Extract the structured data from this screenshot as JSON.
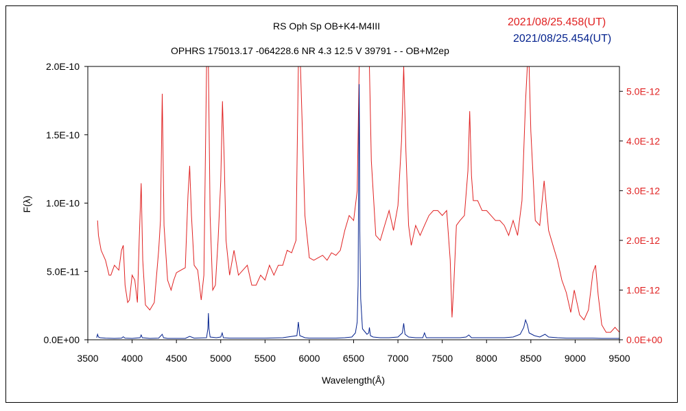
{
  "title_line1": "RS Oph    Sp OB+K4-M4III",
  "title_line2": "OPHRS 175013.17 -064228.6 NR 4.3 12.5 V 39791 - - OB+M2ep",
  "chart_data": {
    "type": "line",
    "xlabel": "Wavelength(Å)",
    "ylabel": "F(λ)",
    "xlim": [
      3500,
      9500
    ],
    "ylim_left": [
      0,
      2e-10
    ],
    "ylim_right": [
      0,
      5.5e-12
    ],
    "x_ticks": [
      "3500",
      "4000",
      "4500",
      "5000",
      "5500",
      "6000",
      "6500",
      "7000",
      "7500",
      "8000",
      "8500",
      "9000",
      "9500"
    ],
    "y_ticks_left": [
      "0.0E+00",
      "5.0E-11",
      "1.0E-10",
      "1.5E-10",
      "2.0E-10"
    ],
    "y_ticks_right": [
      "0.0E+00",
      "1.0E-12",
      "2.0E-12",
      "3.0E-12",
      "4.0E-12",
      "5.0E-12"
    ],
    "grid": false,
    "series": [
      {
        "name": "2021/08/25.458(UT)",
        "color": "#e02020",
        "axis": "right",
        "x": [
          3610,
          3620,
          3650,
          3700,
          3740,
          3760,
          3800,
          3850,
          3880,
          3900,
          3920,
          3950,
          3970,
          4000,
          4030,
          4060,
          4080,
          4102,
          4120,
          4150,
          4200,
          4250,
          4300,
          4320,
          4340,
          4360,
          4400,
          4440,
          4470,
          4500,
          4550,
          4600,
          4630,
          4650,
          4670,
          4700,
          4740,
          4780,
          4810,
          4840,
          4861,
          4880,
          4910,
          4940,
          4970,
          5000,
          5020,
          5040,
          5060,
          5100,
          5150,
          5200,
          5250,
          5300,
          5350,
          5400,
          5450,
          5500,
          5550,
          5600,
          5650,
          5700,
          5750,
          5800,
          5850,
          5876,
          5900,
          5950,
          6000,
          6050,
          6100,
          6150,
          6200,
          6250,
          6300,
          6350,
          6400,
          6450,
          6500,
          6540,
          6563,
          6590,
          6620,
          6650,
          6678,
          6700,
          6750,
          6800,
          6850,
          6900,
          6950,
          7000,
          7040,
          7065,
          7090,
          7120,
          7150,
          7200,
          7250,
          7300,
          7350,
          7400,
          7450,
          7500,
          7550,
          7590,
          7610,
          7630,
          7660,
          7700,
          7750,
          7790,
          7810,
          7830,
          7850,
          7900,
          7950,
          8000,
          8050,
          8100,
          8150,
          8200,
          8250,
          8300,
          8350,
          8400,
          8440,
          8460,
          8480,
          8500,
          8550,
          8600,
          8650,
          8700,
          8750,
          8800,
          8850,
          8900,
          8950,
          8990,
          9050,
          9100,
          9150,
          9200,
          9230,
          9260,
          9300,
          9350,
          9400,
          9450,
          9500
        ],
        "y": [
          2.4e-12,
          2.1e-12,
          1.8e-12,
          1.6e-12,
          1.3e-12,
          1.3e-12,
          1.5e-12,
          1.4e-12,
          1.8e-12,
          1.9e-12,
          1.1e-12,
          7.5e-13,
          8e-13,
          1.3e-12,
          1.2e-12,
          7.5e-13,
          2e-12,
          3.15e-12,
          1.6e-12,
          7e-13,
          6e-13,
          7.5e-13,
          1.8e-12,
          2.4e-12,
          4.95e-12,
          2.3e-12,
          1.2e-12,
          1e-12,
          1.2e-12,
          1.35e-12,
          1.4e-12,
          1.45e-12,
          2.9e-12,
          3.5e-12,
          2.5e-12,
          1.5e-12,
          1.4e-12,
          8e-13,
          1.3e-12,
          5.5e-12,
          5.5e-12,
          2.5e-12,
          1e-12,
          1.1e-12,
          2e-12,
          3.2e-12,
          4.8e-12,
          3.6e-12,
          2e-12,
          1.3e-12,
          1.8e-12,
          1.3e-12,
          1.4e-12,
          1.5e-12,
          1.1e-12,
          1.1e-12,
          1.3e-12,
          1.2e-12,
          1.5e-12,
          1.3e-12,
          1.5e-12,
          1.5e-12,
          1.8e-12,
          1.75e-12,
          2e-12,
          5.5e-12,
          5.5e-12,
          2.5e-12,
          1.65e-12,
          1.6e-12,
          1.65e-12,
          1.7e-12,
          1.6e-12,
          1.75e-12,
          1.7e-12,
          1.8e-12,
          2.2e-12,
          2.5e-12,
          2.4e-12,
          3e-12,
          5.5e-12,
          5.5e-12,
          5.5e-12,
          5.5e-12,
          5.5e-12,
          3.6e-12,
          2.1e-12,
          2e-12,
          2.3e-12,
          2.6e-12,
          2.2e-12,
          2.7e-12,
          4e-12,
          5.5e-12,
          3.8e-12,
          2.3e-12,
          1.9e-12,
          2.3e-12,
          2.1e-12,
          2.3e-12,
          2.5e-12,
          2.6e-12,
          2.6e-12,
          2.5e-12,
          2.6e-12,
          1.6e-12,
          4.5e-13,
          1.1e-12,
          2.3e-12,
          2.4e-12,
          2.5e-12,
          3.4e-12,
          4.6e-12,
          3.3e-12,
          2.8e-12,
          2.8e-12,
          2.6e-12,
          2.6e-12,
          2.5e-12,
          2.4e-12,
          2.4e-12,
          2.3e-12,
          2.1e-12,
          2.4e-12,
          2.1e-12,
          2.8e-12,
          4.8e-12,
          5.5e-12,
          5.5e-12,
          4.2e-12,
          2.4e-12,
          2.3e-12,
          3.2e-12,
          2.2e-12,
          1.9e-12,
          1.6e-12,
          1.2e-12,
          9.5e-13,
          5.5e-13,
          1e-12,
          5e-13,
          4e-13,
          6e-13,
          1.35e-12,
          1.5e-12,
          9e-13,
          3e-13,
          1.5e-13,
          1.5e-13,
          2.5e-13,
          1.5e-13
        ]
      },
      {
        "name": "2021/08/25.454(UT)",
        "color": "#001f8c",
        "axis": "left",
        "x": [
          3600,
          3610,
          3620,
          3640,
          3700,
          3800,
          3880,
          3900,
          3920,
          4000,
          4090,
          4102,
          4115,
          4200,
          4300,
          4340,
          4355,
          4400,
          4500,
          4600,
          4650,
          4700,
          4840,
          4855,
          4861,
          4868,
          4880,
          4950,
          5000,
          5017,
          5030,
          5100,
          5200,
          5300,
          5500,
          5700,
          5860,
          5876,
          5892,
          5950,
          6000,
          6100,
          6200,
          6300,
          6400,
          6480,
          6520,
          6540,
          6550,
          6555,
          6560,
          6563,
          6566,
          6570,
          6580,
          6600,
          6650,
          6670,
          6678,
          6690,
          6720,
          6800,
          6900,
          7000,
          7050,
          7065,
          7080,
          7120,
          7200,
          7280,
          7300,
          7320,
          7400,
          7500,
          7600,
          7700,
          7770,
          7800,
          7830,
          7900,
          8000,
          8100,
          8200,
          8300,
          8380,
          8420,
          8440,
          8460,
          8480,
          8540,
          8600,
          8660,
          8700,
          8800,
          8900,
          9000,
          9100,
          9200,
          9300,
          9400,
          9500
        ],
        "y": [
          1.5e-12,
          4e-12,
          2e-12,
          1.5e-12,
          1.2e-12,
          1e-12,
          1.2e-12,
          2.2e-12,
          1.2e-12,
          1e-12,
          1.5e-12,
          3.5e-12,
          1.5e-12,
          1e-12,
          1.2e-12,
          4e-12,
          1.5e-12,
          1e-12,
          1e-12,
          1e-12,
          2.5e-12,
          1.2e-12,
          1.5e-12,
          8e-12,
          1.95e-11,
          8e-12,
          2e-12,
          1.5e-12,
          2e-12,
          5e-12,
          1.5e-12,
          1.2e-12,
          1.2e-12,
          1.2e-12,
          1.2e-12,
          1.5e-12,
          3e-12,
          1.3e-11,
          3e-12,
          1.5e-12,
          1.2e-12,
          1.2e-12,
          1.2e-12,
          1.2e-12,
          1.5e-12,
          2e-12,
          5e-12,
          1.3e-11,
          4e-11,
          1e-10,
          1.65e-10,
          1.87e-10,
          1.55e-10,
          8e-11,
          3e-11,
          8e-12,
          4e-12,
          5e-12,
          9e-12,
          3e-12,
          2e-12,
          1.5e-12,
          1.5e-12,
          2e-12,
          5e-12,
          1.2e-11,
          4e-12,
          2e-12,
          1.5e-12,
          1.5e-12,
          5e-12,
          1.5e-12,
          1.5e-12,
          1.5e-12,
          1.5e-12,
          1.5e-12,
          2e-12,
          3.5e-12,
          1.5e-12,
          1.5e-12,
          1.5e-12,
          1.5e-12,
          1.5e-12,
          2e-12,
          4e-12,
          9e-12,
          1.45e-11,
          1.1e-11,
          5e-12,
          3e-12,
          2e-12,
          4e-12,
          2e-12,
          1.5e-12,
          1.2e-12,
          1.2e-12,
          1.2e-12,
          1.2e-12,
          1e-12,
          1e-12,
          1e-12
        ]
      }
    ]
  }
}
